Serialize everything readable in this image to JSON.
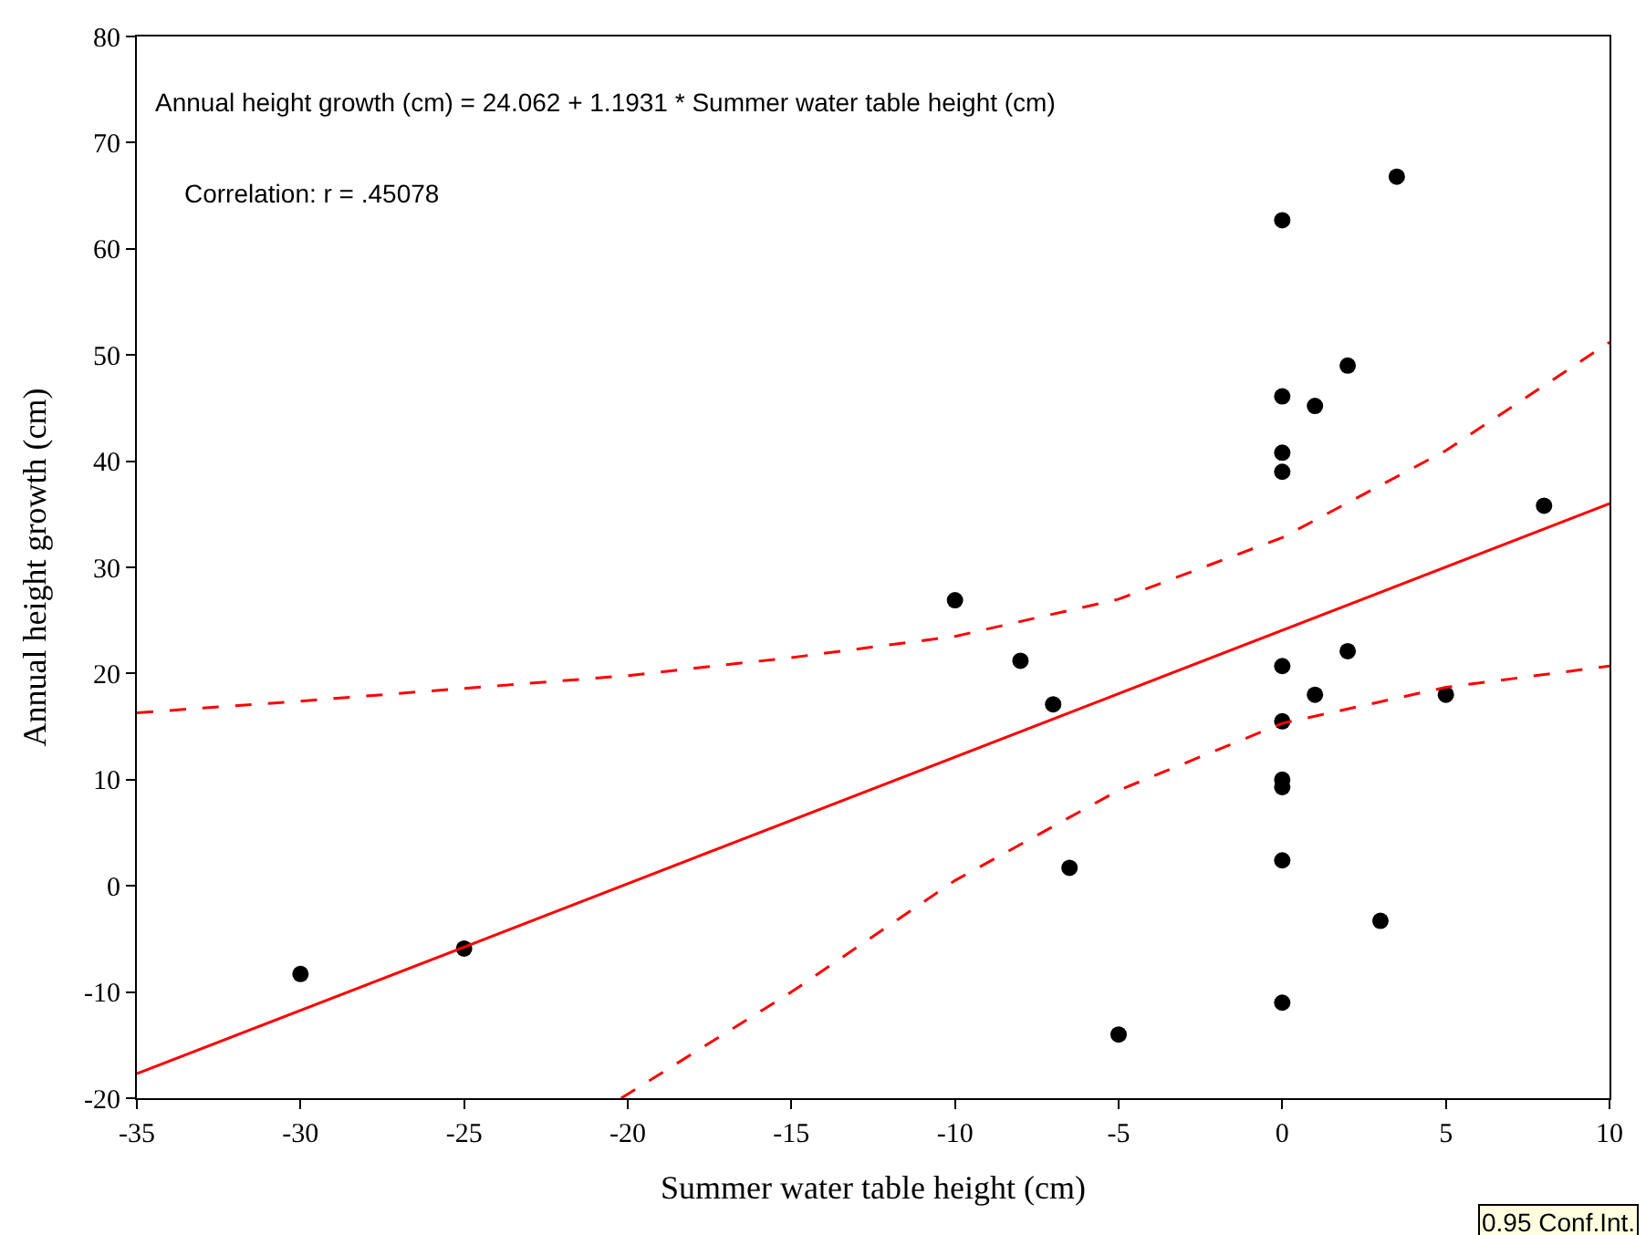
{
  "chart_data": {
    "type": "scatter",
    "xlabel": "Summer water table height (cm)",
    "ylabel": "Annual height growth (cm)",
    "xlim": [
      -35,
      10
    ],
    "xticks": [
      -35,
      -30,
      -25,
      -20,
      -15,
      -10,
      -5,
      0,
      5,
      10
    ],
    "ylim": [
      -20,
      80
    ],
    "yticks": [
      -20,
      -10,
      0,
      10,
      20,
      30,
      40,
      50,
      60,
      70,
      80
    ],
    "legend": false,
    "marker": "circle",
    "series": [
      {
        "color": "#000000",
        "x": [
          -30,
          -25,
          -10,
          -8,
          -7,
          -6.5,
          -5,
          0,
          0,
          0,
          0,
          0,
          0,
          0,
          0,
          0,
          0,
          1,
          1,
          2,
          2,
          3,
          3.5,
          5,
          8
        ],
        "values": [
          -8.3,
          -5.9,
          26.9,
          21.2,
          17.1,
          1.7,
          -14,
          62.7,
          46.1,
          40.8,
          39,
          20.7,
          15.5,
          10,
          9.3,
          2.4,
          -11,
          45.2,
          18,
          49,
          22.1,
          -3.3,
          66.8,
          18,
          35.8
        ]
      },
      {
        "type": "line",
        "color": "#ff0000",
        "line_style": "solid",
        "marker": "none",
        "x": [
          -35,
          10
        ],
        "values": [
          -17.7,
          36.0
        ]
      },
      {
        "type": "line",
        "color": "#ff0000",
        "line_style": "dashed",
        "marker": "none",
        "x": [
          -35,
          -30,
          -25,
          -20,
          -15,
          -10,
          -5,
          0,
          5,
          10
        ],
        "values": [
          16.3,
          17.4,
          18.6,
          19.8,
          21.5,
          23.5,
          27,
          32.8,
          41,
          51.2
        ]
      },
      {
        "type": "line",
        "color": "#ff0000",
        "line_style": "dashed",
        "marker": "none",
        "x": [
          -20.2,
          -15,
          -10,
          -5,
          0,
          5,
          10
        ],
        "values": [
          -20,
          -10,
          0.5,
          9,
          15.3,
          18.7,
          20.7
        ]
      }
    ],
    "annotations": [
      "Annual height growth (cm) = 24.062 + 1.1931 * Summer water table height (cm)",
      "Correlation: r = .45078",
      "0.95 Conf.Int."
    ]
  }
}
